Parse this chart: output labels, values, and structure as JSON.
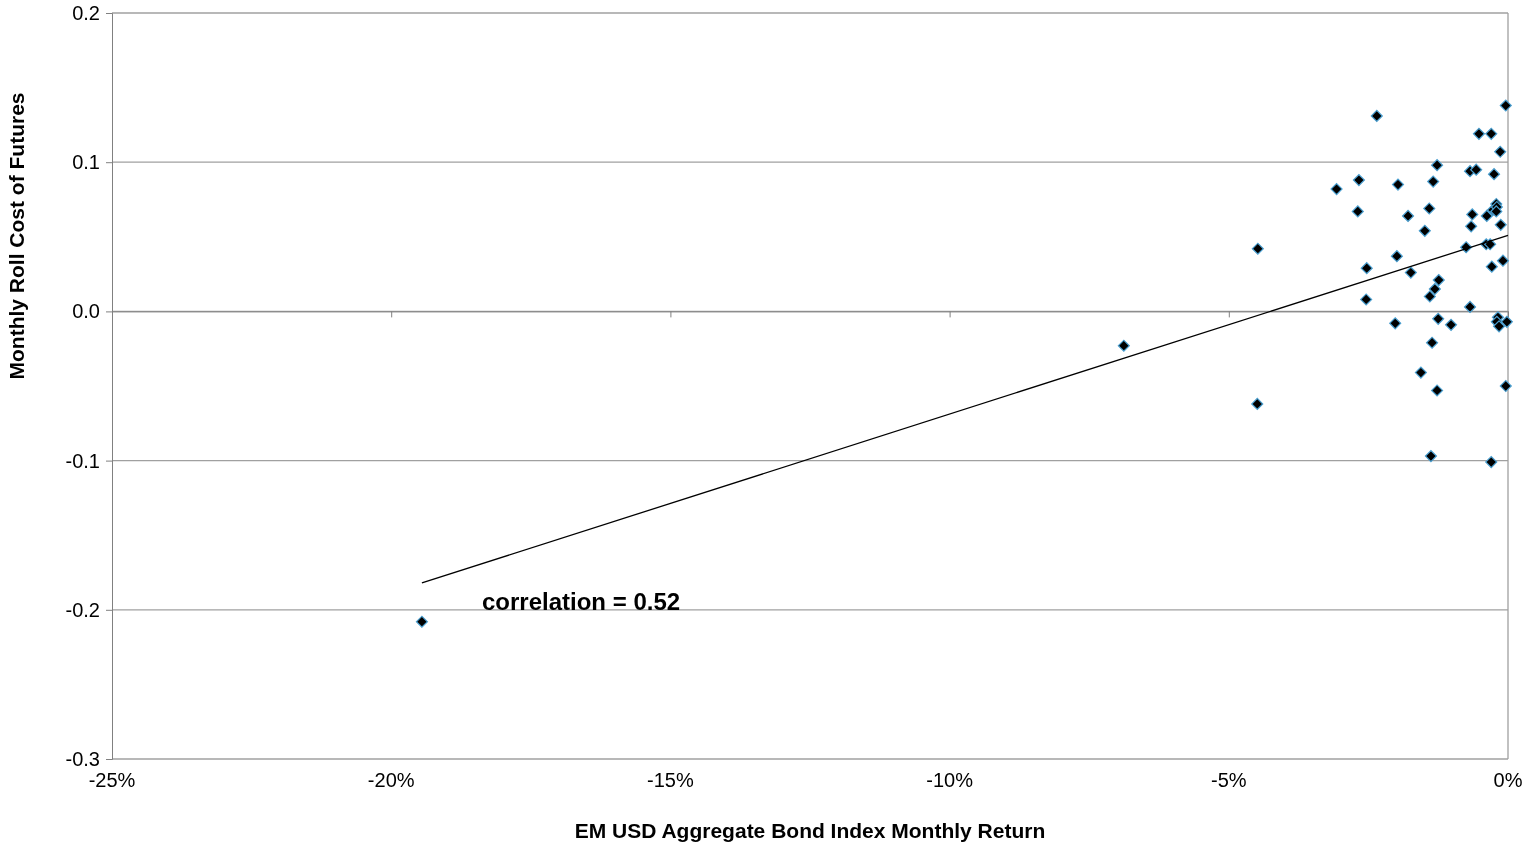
{
  "chart_data": {
    "type": "scatter",
    "xlabel": "EM USD Aggregate Bond Index Monthly Return",
    "ylabel": "Monthly Roll Cost of Futures",
    "xlim": [
      -25,
      0
    ],
    "xticks": [
      {
        "value": -25,
        "label": "-25%"
      },
      {
        "value": -20,
        "label": "-20%"
      },
      {
        "value": -15,
        "label": "-15%"
      },
      {
        "value": -10,
        "label": "-10%"
      },
      {
        "value": -5,
        "label": "-5%"
      },
      {
        "value": 0,
        "label": "0%"
      }
    ],
    "ylim": [
      -0.3,
      0.2
    ],
    "yticks": [
      {
        "value": -0.3,
        "label": "-0.3"
      },
      {
        "value": -0.2,
        "label": "-0.2"
      },
      {
        "value": -0.1,
        "label": "-0.1"
      },
      {
        "value": 0,
        "label": "0.0"
      },
      {
        "value": 0.1,
        "label": "0.1"
      },
      {
        "value": 0.2,
        "label": "0.2"
      }
    ],
    "grid": "y",
    "marker": "diamond",
    "annotations": [
      "correlation = 0.52"
    ],
    "series": [
      {
        "color": "#000000",
        "x": [
          -19.45,
          -6.88,
          -4.48,
          -4.49,
          -3.07,
          -2.67,
          -2.69,
          -2.35,
          -2.53,
          -2.54,
          -1.97,
          -1.99,
          -2.02,
          -1.79,
          -1.74,
          -1.49,
          -1.41,
          -1.34,
          -1.27,
          -1.4,
          -1.31,
          -1.24,
          -1.25,
          -1.02,
          -1.56,
          -1.36,
          -1.27,
          -1.38,
          -0.75,
          -0.68,
          -0.57,
          -0.52,
          -0.64,
          -0.66,
          -0.68,
          -0.39,
          -0.38,
          -0.32,
          -0.3,
          -0.25,
          -0.29,
          -0.27,
          -0.21,
          -0.2,
          -0.18,
          -0.2,
          -0.16,
          -0.14,
          -0.13,
          -0.09,
          -0.04,
          -0.02,
          -0.04,
          -0.3,
          -0.21
        ],
        "values": [
          -0.208,
          -0.023,
          0.042,
          -0.062,
          0.082,
          0.088,
          0.067,
          0.131,
          0.029,
          0.008,
          0.085,
          0.037,
          -0.008,
          0.064,
          0.026,
          0.054,
          0.069,
          0.087,
          0.098,
          0.01,
          0.015,
          0.021,
          -0.005,
          -0.009,
          -0.041,
          -0.021,
          -0.053,
          -0.097,
          0.043,
          0.094,
          0.095,
          0.119,
          0.065,
          0.057,
          0.003,
          0.045,
          0.064,
          0.045,
          0.119,
          0.092,
          0.03,
          0.068,
          0.072,
          0.07,
          -0.004,
          -0.007,
          -0.01,
          0.107,
          0.058,
          0.034,
          0.138,
          -0.007,
          -0.05,
          -0.101,
          0.067
        ]
      },
      {
        "type": "line",
        "color": "#000000",
        "x": [
          -19.45,
          0
        ],
        "values": [
          -0.182,
          0.051
        ],
        "marker": "none"
      }
    ]
  }
}
